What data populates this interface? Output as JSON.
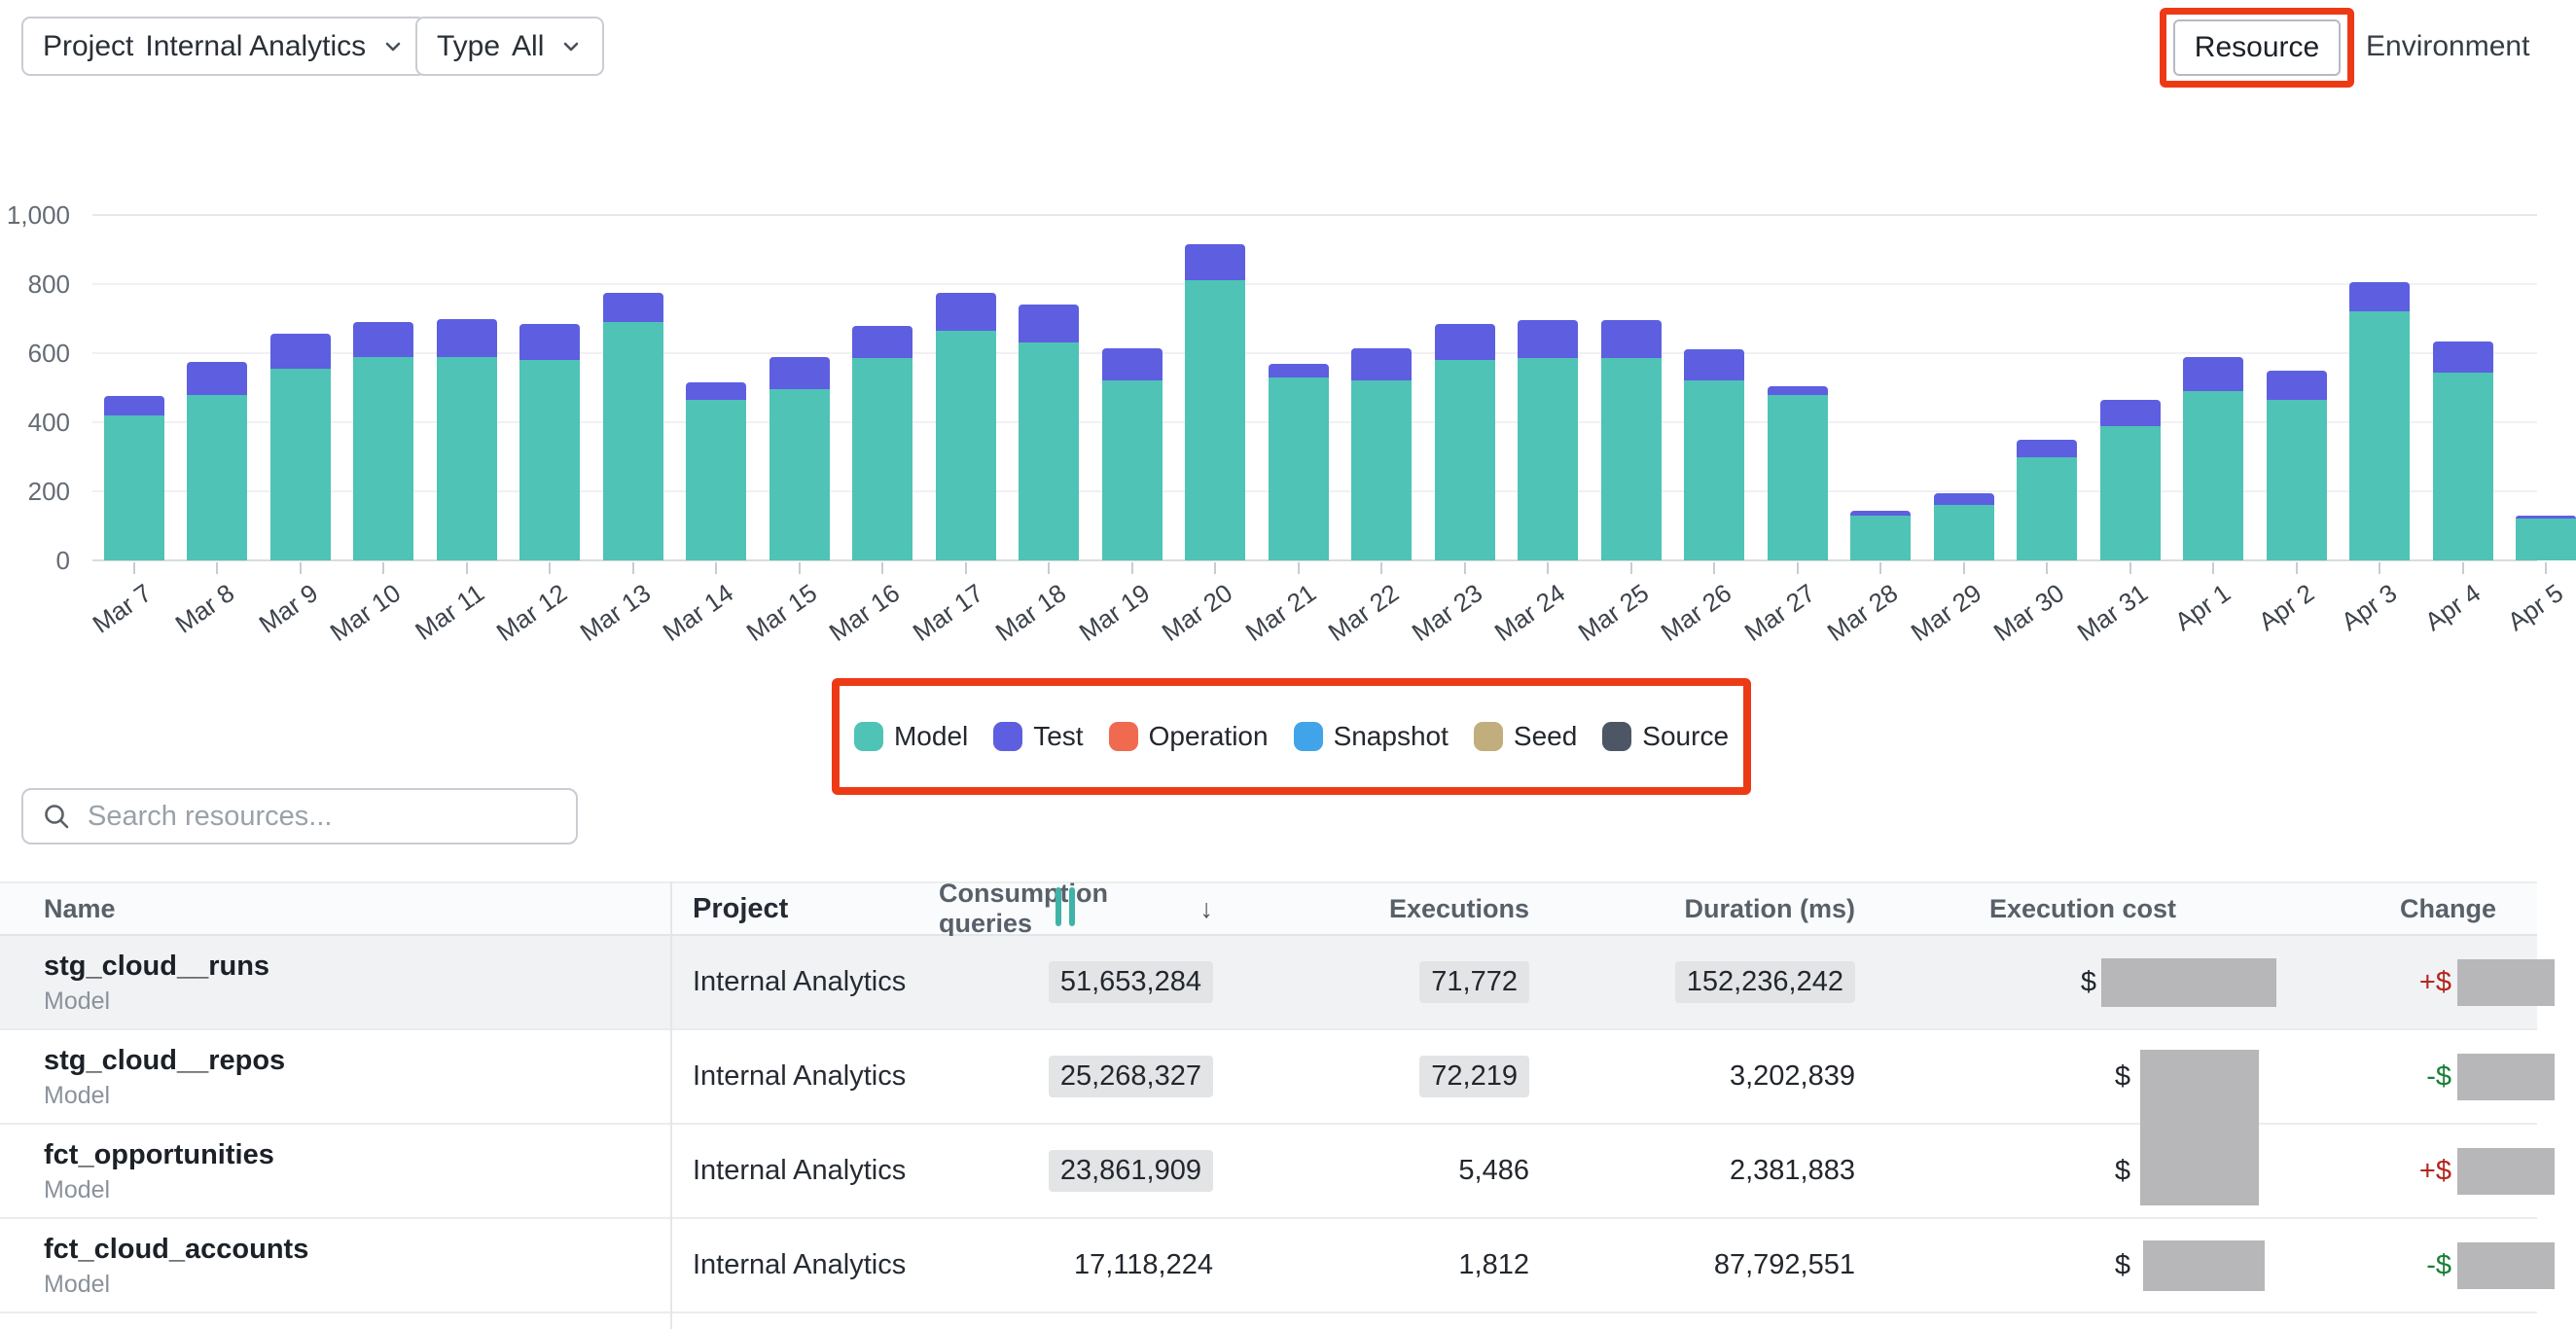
{
  "filters": {
    "project": {
      "label": "Project",
      "value": "Internal Analytics"
    },
    "type": {
      "label": "Type",
      "value": "All"
    }
  },
  "view_toggle": {
    "resource": "Resource",
    "environment": "Environment"
  },
  "search": {
    "placeholder": "Search resources..."
  },
  "icons": {
    "sort_desc": "↓",
    "chevron_down": "chevron-down",
    "search": "magnifier"
  },
  "colors": {
    "annotation": "#ED3A16",
    "redaction": "#B7B7B9",
    "highlight_pill": "#E3E4E6",
    "change_up": "#B3261E",
    "change_down": "#1A7F37",
    "model": "#4FC3B5",
    "test": "#5D5FE0",
    "operation": "#F06A50",
    "snapshot": "#42A4E8",
    "seed": "#C1AE7C",
    "source": "#4D5664"
  },
  "chart_data": {
    "type": "bar",
    "stacked": true,
    "title": "",
    "xlabel": "",
    "ylabel": "",
    "ylim": [
      0,
      1000
    ],
    "yticks": [
      0,
      200,
      400,
      600,
      800,
      1000
    ],
    "ytick_labels": [
      "0",
      "200",
      "400",
      "600",
      "800",
      "1,000"
    ],
    "grid": true,
    "legend_position": "bottom",
    "categories": [
      "Mar 7",
      "Mar 8",
      "Mar 9",
      "Mar 10",
      "Mar 11",
      "Mar 12",
      "Mar 13",
      "Mar 14",
      "Mar 15",
      "Mar 16",
      "Mar 17",
      "Mar 18",
      "Mar 19",
      "Mar 20",
      "Mar 21",
      "Mar 22",
      "Mar 23",
      "Mar 24",
      "Mar 25",
      "Mar 26",
      "Mar 27",
      "Mar 28",
      "Mar 29",
      "Mar 30",
      "Mar 31",
      "Apr 1",
      "Apr 2",
      "Apr 3",
      "Apr 4",
      "Apr 5"
    ],
    "series": [
      {
        "name": "Model",
        "color": "#4FC3B5",
        "values": [
          420,
          480,
          555,
          590,
          590,
          580,
          690,
          465,
          495,
          585,
          665,
          630,
          520,
          810,
          530,
          520,
          580,
          585,
          585,
          520,
          480,
          130,
          160,
          300,
          390,
          490,
          465,
          720,
          545,
          120
        ]
      },
      {
        "name": "Test",
        "color": "#5D5FE0",
        "values": [
          55,
          95,
          100,
          100,
          110,
          105,
          85,
          50,
          95,
          95,
          110,
          110,
          95,
          105,
          40,
          95,
          105,
          110,
          110,
          90,
          25,
          15,
          35,
          50,
          75,
          100,
          85,
          85,
          90,
          10
        ]
      }
    ],
    "legend": [
      {
        "label": "Model",
        "color": "#4FC3B5"
      },
      {
        "label": "Test",
        "color": "#5D5FE0"
      },
      {
        "label": "Operation",
        "color": "#F06A50"
      },
      {
        "label": "Snapshot",
        "color": "#42A4E8"
      },
      {
        "label": "Seed",
        "color": "#C1AE7C"
      },
      {
        "label": "Source",
        "color": "#4D5664"
      }
    ]
  },
  "table": {
    "columns": [
      {
        "key": "name",
        "label": "Name"
      },
      {
        "key": "project",
        "label": "Project"
      },
      {
        "key": "consumption",
        "label": "Consumption queries",
        "sorted": "desc"
      },
      {
        "key": "executions",
        "label": "Executions"
      },
      {
        "key": "duration",
        "label": "Duration (ms)"
      },
      {
        "key": "cost",
        "label": "Execution cost"
      },
      {
        "key": "change",
        "label": "Change"
      }
    ],
    "rows": [
      {
        "name": "stg_cloud__runs",
        "type": "Model",
        "project": "Internal Analytics",
        "consumption": "51,653,284",
        "executions": "71,772",
        "duration": "152,236,242",
        "cost_prefix": "$",
        "cost_redacted": true,
        "change_prefix": "+$",
        "change_direction": "up",
        "change_redacted": true,
        "highlight": [
          "consumption",
          "executions",
          "duration"
        ]
      },
      {
        "name": "stg_cloud__repos",
        "type": "Model",
        "project": "Internal Analytics",
        "consumption": "25,268,327",
        "executions": "72,219",
        "duration": "3,202,839",
        "cost_prefix": "$",
        "cost_redacted": true,
        "change_prefix": "-$",
        "change_direction": "down",
        "change_redacted": true,
        "highlight": [
          "consumption",
          "executions"
        ]
      },
      {
        "name": "fct_opportunities",
        "type": "Model",
        "project": "Internal Analytics",
        "consumption": "23,861,909",
        "executions": "5,486",
        "duration": "2,381,883",
        "cost_prefix": "$",
        "cost_redacted": true,
        "change_prefix": "+$",
        "change_direction": "up",
        "change_redacted": true,
        "highlight": [
          "consumption"
        ]
      },
      {
        "name": "fct_cloud_accounts",
        "type": "Model",
        "project": "Internal Analytics",
        "consumption": "17,118,224",
        "executions": "1,812",
        "duration": "87,792,551",
        "cost_prefix": "$",
        "cost_redacted": true,
        "change_prefix": "-$",
        "change_direction": "down",
        "change_redacted": true,
        "highlight": []
      }
    ]
  },
  "annotations": {
    "color": "#ED3A16",
    "highlight_boxes": [
      "resource-tab",
      "chart-legend"
    ]
  }
}
